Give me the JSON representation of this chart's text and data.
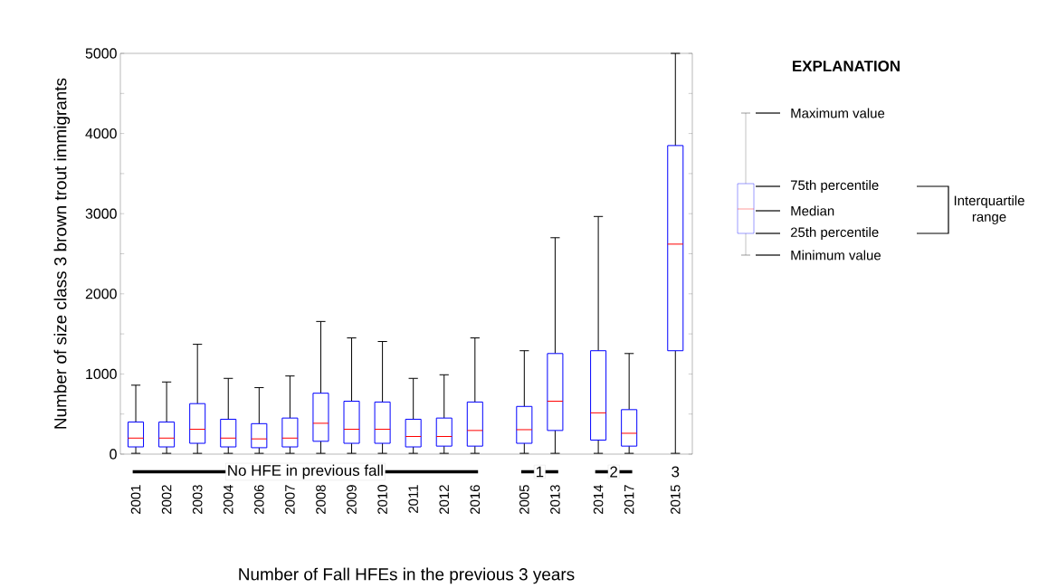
{
  "chart_data": {
    "type": "box",
    "xlabel": "Number of Fall HFEs in the previous 3 years",
    "ylabel": "Number of size class 3 brown trout immigrants",
    "categories": [
      "2001",
      "2002",
      "2003",
      "2004",
      "2006",
      "2007",
      "2008",
      "2009",
      "2010",
      "2011",
      "2012",
      "2016",
      "2005",
      "2013",
      "2014",
      "2017",
      "2015"
    ],
    "color": "#0000ff",
    "boxes": [
      {
        "low": 10,
        "q1": 90,
        "median": 200,
        "q3": 400,
        "high": 860
      },
      {
        "low": 10,
        "q1": 90,
        "median": 200,
        "q3": 400,
        "high": 900
      },
      {
        "low": 10,
        "q1": 135,
        "median": 310,
        "q3": 630,
        "high": 1370
      },
      {
        "low": 10,
        "q1": 90,
        "median": 200,
        "q3": 435,
        "high": 945
      },
      {
        "low": 10,
        "q1": 80,
        "median": 190,
        "q3": 380,
        "high": 830
      },
      {
        "low": 10,
        "q1": 90,
        "median": 200,
        "q3": 450,
        "high": 975
      },
      {
        "low": 10,
        "q1": 160,
        "median": 385,
        "q3": 760,
        "high": 1655
      },
      {
        "low": 10,
        "q1": 135,
        "median": 310,
        "q3": 660,
        "high": 1450
      },
      {
        "low": 10,
        "q1": 135,
        "median": 310,
        "q3": 650,
        "high": 1405
      },
      {
        "low": 10,
        "q1": 90,
        "median": 220,
        "q3": 435,
        "high": 945
      },
      {
        "low": 10,
        "q1": 100,
        "median": 220,
        "q3": 450,
        "high": 990
      },
      {
        "low": 10,
        "q1": 100,
        "median": 295,
        "q3": 650,
        "high": 1450
      },
      {
        "low": 10,
        "q1": 135,
        "median": 305,
        "q3": 595,
        "high": 1290
      },
      {
        "low": 10,
        "q1": 295,
        "median": 660,
        "q3": 1255,
        "high": 2700
      },
      {
        "low": 10,
        "q1": 175,
        "median": 515,
        "q3": 1290,
        "high": 2965
      },
      {
        "low": 10,
        "q1": 100,
        "median": 260,
        "q3": 555,
        "high": 1255
      },
      {
        "low": 10,
        "q1": 1290,
        "median": 2620,
        "q3": 3850,
        "high": 5000
      }
    ],
    "ylim": [
      0,
      5000
    ],
    "yticks": [
      0,
      {
        "value": 500,
        "label": null
      },
      1000,
      {
        "value": 1500,
        "label": null
      },
      2000,
      {
        "value": 2500,
        "label": null
      },
      3000,
      {
        "value": 3500,
        "label": null
      },
      4000,
      {
        "value": 4500,
        "label": null
      },
      5000
    ],
    "annotations": [
      "No HFE in previous fall",
      "1",
      "2",
      "3",
      "EXPLANATION",
      "Maximum value",
      "75th percentile",
      "Median",
      "25th percentile",
      "Minimum value",
      "Interquartile range"
    ]
  }
}
